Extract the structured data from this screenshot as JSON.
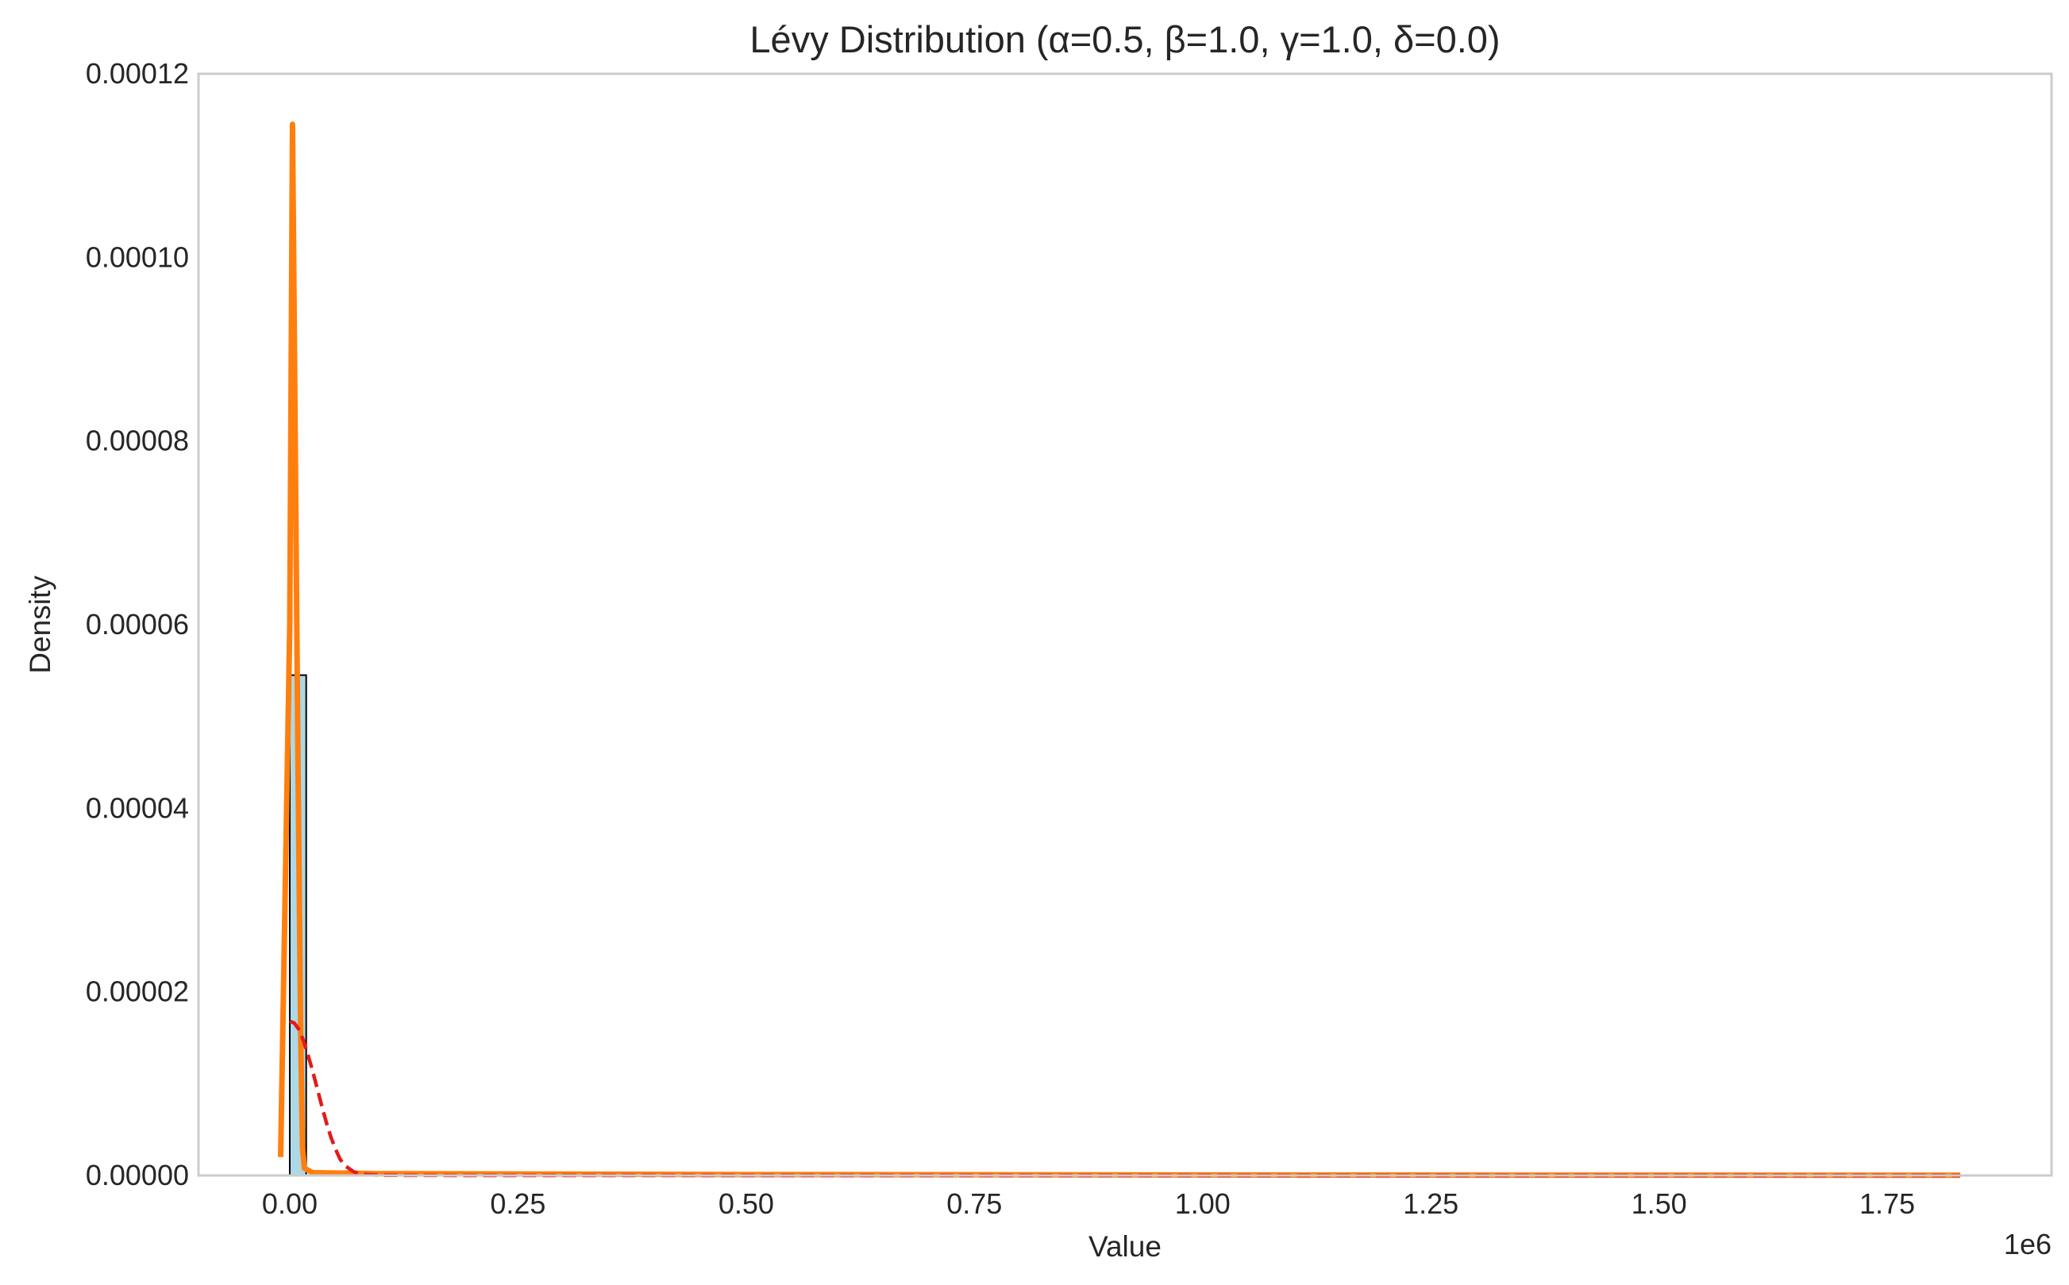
{
  "chart_data": {
    "type": "histogram",
    "title": "Lévy Distribution (α=0.5, β=1.0, γ=1.0, δ=0.0)",
    "xlabel": "Value",
    "ylabel": "Density",
    "x_offset_label": "1e6",
    "xlim": [
      -100000,
      1930000
    ],
    "ylim": [
      0,
      0.00012
    ],
    "x_ticks": [
      0,
      0.25,
      0.5,
      0.75,
      1.0,
      1.25,
      1.5,
      1.75
    ],
    "x_tick_labels": [
      "0.00",
      "0.25",
      "0.50",
      "0.75",
      "1.00",
      "1.25",
      "1.50",
      "1.75"
    ],
    "y_ticks": [
      0,
      2e-05,
      4e-05,
      6e-05,
      8e-05,
      0.0001,
      0.00012
    ],
    "y_tick_labels": [
      "0.00000",
      "0.00002",
      "0.00004",
      "0.00006",
      "0.00008",
      "0.00010",
      "0.00012"
    ],
    "grid": false,
    "histogram": {
      "color": "#add8e6",
      "edge_color": "#000000",
      "bins": [
        {
          "x0": 0,
          "x1": 18000,
          "height": 5.45e-05
        }
      ]
    },
    "series": [
      {
        "style": "solid",
        "color": "#ff7f0e",
        "x": [
          -10000,
          0,
          3000,
          6000,
          9000,
          12000,
          14000,
          16000,
          25000,
          100000,
          500000,
          1000000,
          1500000,
          1830000
        ],
        "y": [
          2e-06,
          6e-05,
          0.0001145,
          8e-05,
          4.5e-05,
          1.5e-05,
          3e-06,
          8e-07,
          3e-07,
          2e-07,
          1e-07,
          5e-08,
          3e-08,
          2e-08
        ]
      },
      {
        "style": "dashed",
        "color": "#e31a1c",
        "x": [
          0,
          5000,
          10000,
          15000,
          20000,
          25000,
          30000,
          35000,
          40000,
          45000,
          50000,
          55000,
          60000,
          70000,
          80000,
          100000,
          200000,
          500000,
          1000000,
          1500000,
          1830000
        ],
        "y": [
          1.68e-05,
          1.66e-05,
          1.59e-05,
          1.47e-05,
          1.31e-05,
          1.14e-05,
          9.5e-06,
          7.6e-06,
          5.8e-06,
          4.2e-06,
          2.9e-06,
          1.8e-06,
          1.1e-06,
          4e-07,
          1.2e-07,
          2e-08,
          0.0,
          0.0,
          0.0,
          0.0,
          0.0
        ]
      }
    ]
  }
}
